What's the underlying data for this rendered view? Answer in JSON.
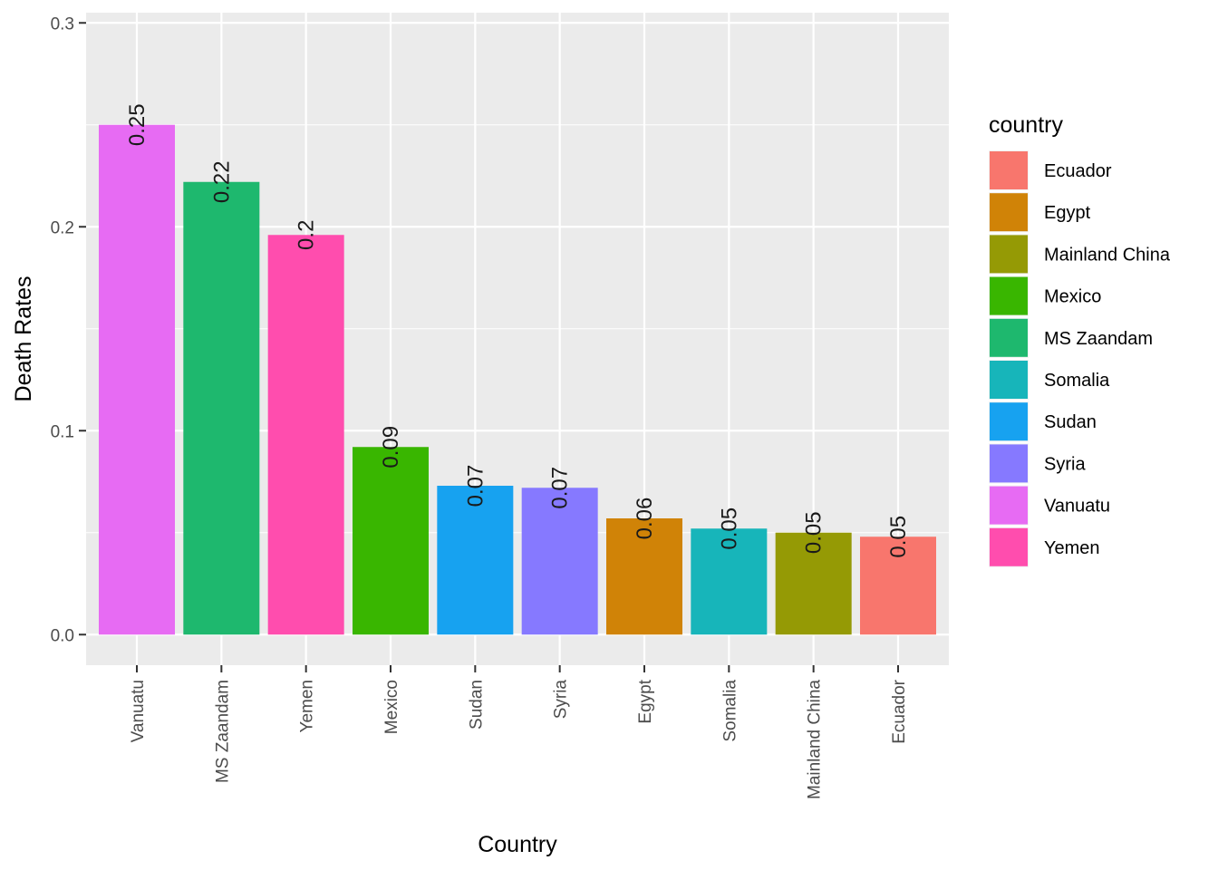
{
  "chart_data": {
    "type": "bar",
    "categories": [
      "Vanuatu",
      "MS Zaandam",
      "Yemen",
      "Mexico",
      "Sudan",
      "Syria",
      "Egypt",
      "Somalia",
      "Mainland China",
      "Ecuador"
    ],
    "values": [
      0.25,
      0.222,
      0.196,
      0.092,
      0.073,
      0.072,
      0.057,
      0.052,
      0.05,
      0.048
    ],
    "data_labels": [
      "0.25",
      "0.22",
      "0.2",
      "0.09",
      "0.07",
      "0.07",
      "0.06",
      "0.05",
      "0.05",
      "0.05"
    ],
    "colors": [
      "#E76BF3",
      "#1EB86E",
      "#FF4DAE",
      "#39B600",
      "#17A2F0",
      "#8679FF",
      "#D08307",
      "#17B5BA",
      "#959A05",
      "#F8766D"
    ],
    "xlabel": "Country",
    "ylabel": "Death Rates",
    "ylim": [
      -0.015,
      0.305
    ],
    "yticks": [
      0.0,
      0.1,
      0.2,
      0.3
    ],
    "ytick_labels": [
      "0.0",
      "0.1",
      "0.2",
      "0.3"
    ],
    "grid": true,
    "legend": {
      "title": "country",
      "placement": "right",
      "entries": [
        {
          "label": "Ecuador",
          "color": "#F8766D"
        },
        {
          "label": "Egypt",
          "color": "#D08307"
        },
        {
          "label": "Mainland China",
          "color": "#959A05"
        },
        {
          "label": "Mexico",
          "color": "#39B600"
        },
        {
          "label": "MS Zaandam",
          "color": "#1EB86E"
        },
        {
          "label": "Somalia",
          "color": "#17B5BA"
        },
        {
          "label": "Sudan",
          "color": "#17A2F0"
        },
        {
          "label": "Syria",
          "color": "#8679FF"
        },
        {
          "label": "Vanuatu",
          "color": "#E76BF3"
        },
        {
          "label": "Yemen",
          "color": "#FF4DAE"
        }
      ]
    }
  }
}
